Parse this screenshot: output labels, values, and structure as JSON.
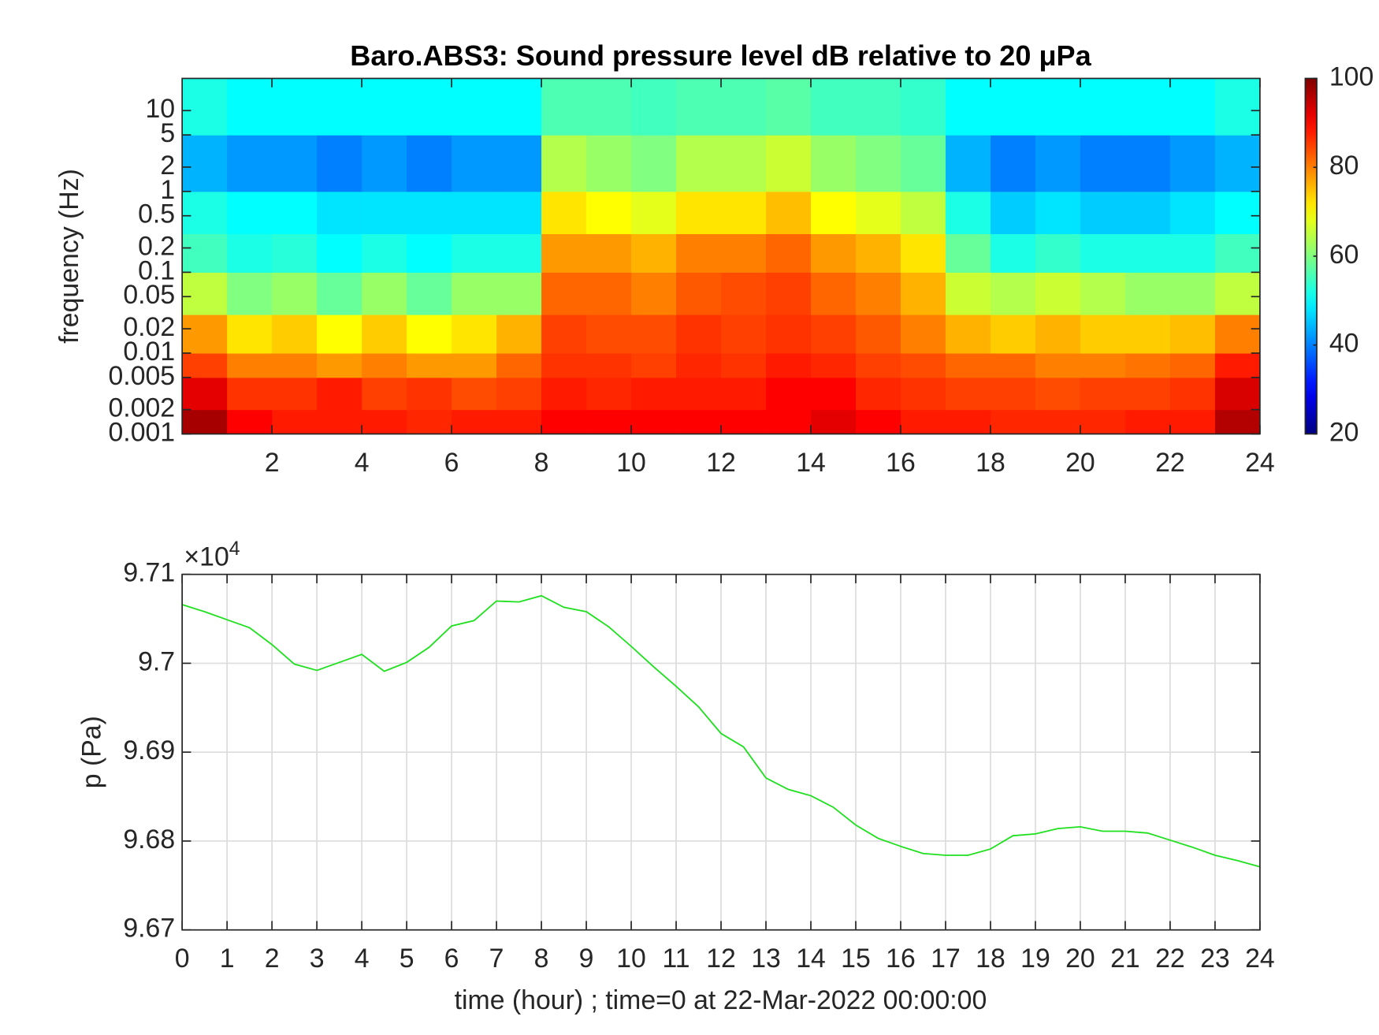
{
  "chart_data": [
    {
      "type": "heatmap",
      "title": "Baro.ABS3: Sound pressure level dB relative to 20 μPa",
      "ylabel": "frequency (Hz)",
      "yscale": "log",
      "colormap": "jet",
      "x_edges": [
        0,
        1,
        2,
        3,
        4,
        5,
        6,
        7,
        8,
        9,
        10,
        11,
        12,
        13,
        14,
        15,
        16,
        17,
        18,
        19,
        20,
        21,
        22,
        23,
        24
      ],
      "y_edges": [
        0.001,
        0.002,
        0.005,
        0.01,
        0.03,
        0.1,
        0.3,
        1,
        5,
        25
      ],
      "z": [
        [
          97,
          90,
          88,
          88,
          88,
          87,
          88,
          88,
          90,
          90,
          90,
          90,
          90,
          90,
          92,
          90,
          88,
          88,
          87,
          87,
          87,
          88,
          88,
          96
        ],
        [
          92,
          86,
          86,
          88,
          85,
          86,
          84,
          85,
          88,
          87,
          88,
          88,
          88,
          90,
          90,
          87,
          86,
          85,
          85,
          84,
          85,
          85,
          86,
          93
        ],
        [
          85,
          80,
          80,
          78,
          80,
          78,
          78,
          82,
          86,
          86,
          85,
          87,
          86,
          88,
          87,
          85,
          84,
          82,
          82,
          80,
          80,
          81,
          82,
          88
        ],
        [
          78,
          72,
          74,
          70,
          74,
          70,
          72,
          76,
          85,
          84,
          84,
          86,
          85,
          86,
          85,
          83,
          80,
          76,
          74,
          76,
          74,
          74,
          75,
          80
        ],
        [
          65,
          60,
          62,
          58,
          62,
          58,
          62,
          62,
          82,
          82,
          80,
          83,
          84,
          85,
          82,
          80,
          76,
          66,
          64,
          66,
          64,
          62,
          62,
          65
        ],
        [
          55,
          52,
          53,
          50,
          52,
          50,
          52,
          52,
          78,
          78,
          76,
          80,
          80,
          82,
          78,
          76,
          72,
          58,
          52,
          54,
          52,
          52,
          52,
          55
        ],
        [
          52,
          50,
          50,
          48,
          48,
          48,
          48,
          48,
          72,
          70,
          68,
          72,
          72,
          75,
          70,
          68,
          65,
          52,
          46,
          48,
          46,
          46,
          48,
          50
        ],
        [
          44,
          42,
          42,
          40,
          42,
          40,
          42,
          42,
          64,
          62,
          60,
          64,
          64,
          66,
          62,
          60,
          58,
          44,
          40,
          42,
          40,
          40,
          42,
          44
        ],
        [
          52,
          50,
          50,
          50,
          50,
          50,
          50,
          50,
          56,
          56,
          55,
          56,
          56,
          57,
          55,
          55,
          54,
          50,
          50,
          50,
          50,
          50,
          50,
          52
        ]
      ],
      "xlim": [
        0,
        24
      ],
      "xticks": [
        2,
        4,
        6,
        8,
        10,
        12,
        14,
        16,
        18,
        20,
        22,
        24
      ],
      "ylim": [
        0.001,
        25
      ],
      "yticks": [
        0.001,
        0.002,
        0.005,
        0.01,
        0.02,
        0.05,
        0.1,
        0.2,
        0.5,
        1,
        2,
        5,
        10
      ],
      "clim": [
        20,
        100
      ],
      "cticks": [
        20,
        40,
        60,
        80,
        100
      ]
    },
    {
      "type": "line",
      "xlabel": "time (hour) ; time=0 at 22-Mar-2022 00:00:00",
      "ylabel": "p (Pa)",
      "y_multiplier": {
        "base": "×10",
        "power": "4"
      },
      "grid": true,
      "x": [
        0,
        0.5,
        1,
        1.5,
        2,
        2.5,
        3,
        3.5,
        4,
        4.5,
        5,
        5.5,
        6,
        6.5,
        7,
        7.5,
        8,
        8.5,
        9,
        9.5,
        10,
        10.5,
        11,
        11.5,
        12,
        12.5,
        13,
        13.5,
        14,
        14.5,
        15,
        15.5,
        16,
        16.5,
        17,
        17.5,
        18,
        18.5,
        19,
        19.5,
        20,
        20.5,
        21,
        21.5,
        22,
        22.5,
        23,
        23.5,
        24
      ],
      "series": [
        {
          "color": "#1ee01e",
          "values": [
            97066,
            97058,
            97049,
            97040,
            97021,
            96999,
            96992,
            97001,
            97010,
            96991,
            97001,
            97018,
            97042,
            97048,
            97070,
            97069,
            97076,
            97063,
            97058,
            97041,
            97019,
            96996,
            96974,
            96951,
            96921,
            96906,
            96871,
            96858,
            96851,
            96838,
            96818,
            96803,
            96794,
            96786,
            96784,
            96784,
            96791,
            96806,
            96808,
            96814,
            96816,
            96811,
            96811,
            96809,
            96801,
            96793,
            96784,
            96778,
            96771
          ]
        }
      ],
      "xlim": [
        0,
        24
      ],
      "xticks": [
        0,
        1,
        2,
        3,
        4,
        5,
        6,
        7,
        8,
        9,
        10,
        11,
        12,
        13,
        14,
        15,
        16,
        17,
        18,
        19,
        20,
        21,
        22,
        23,
        24
      ],
      "ylim": [
        96700,
        97100
      ],
      "yticks": [
        {
          "value": 96700,
          "label": "9.67"
        },
        {
          "value": 96800,
          "label": "9.68"
        },
        {
          "value": 96900,
          "label": "9.69"
        },
        {
          "value": 97000,
          "label": "9.7"
        },
        {
          "value": 97100,
          "label": "9.71"
        }
      ]
    }
  ]
}
